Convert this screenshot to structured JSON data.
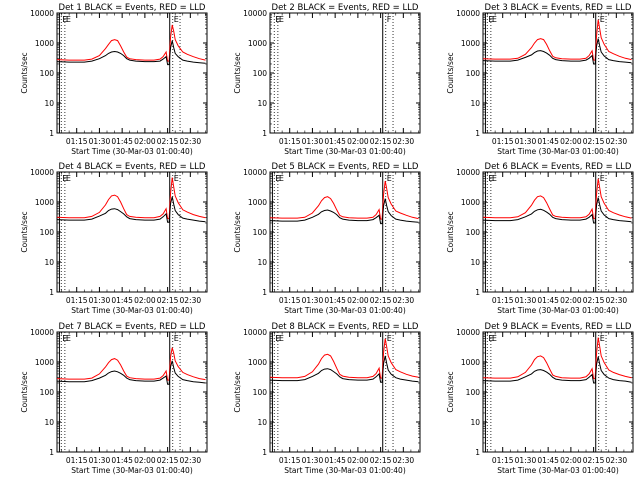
{
  "chart_data": {
    "type": "line",
    "layout": "3x3 grid of panels",
    "x_tick_labels": [
      "01:15",
      "01:30",
      "01:45",
      "02:00",
      "02:15",
      "02:30"
    ],
    "x_tick_minutes": [
      75,
      90,
      105,
      120,
      135,
      150
    ],
    "xlim_minutes": [
      62,
      161
    ],
    "xlabel": "Start Time (30-Mar-03 01:00:40)",
    "ylabel": "Counts/sec",
    "y_scale": "log",
    "ylim": [
      1,
      10000
    ],
    "y_tick_labels": [
      "1",
      "10",
      "100",
      "1000",
      "10000"
    ],
    "series_colors": {
      "events": "#000000",
      "lld": "#ff0000"
    },
    "panels": [
      {
        "title": "Det 1 BLACK = Events, RED = LLD",
        "flags": [
          "E",
          "E",
          "E"
        ],
        "markers_solid": [
          63.6,
          136.4
        ],
        "markers_dotted": [
          64.8,
          67.2,
          138.4,
          143.2
        ],
        "has_data": true,
        "x_minutes": [
          62,
          70,
          75,
          80,
          85,
          90,
          94,
          96,
          98,
          100,
          102,
          104,
          106,
          108,
          110,
          114,
          120,
          126,
          130,
          132,
          134,
          135,
          136,
          137,
          138,
          139,
          140,
          142,
          145,
          148,
          152,
          156,
          160
        ],
        "events": [
          240,
          230,
          230,
          230,
          250,
          300,
          380,
          450,
          500,
          520,
          500,
          450,
          380,
          300,
          270,
          250,
          240,
          240,
          250,
          290,
          350,
          190,
          190,
          700,
          1200,
          700,
          450,
          350,
          270,
          250,
          230,
          220,
          210
        ],
        "lld": [
          280,
          270,
          270,
          270,
          290,
          380,
          650,
          900,
          1200,
          1300,
          1200,
          800,
          500,
          340,
          300,
          280,
          270,
          270,
          290,
          350,
          500,
          250,
          250,
          1600,
          4000,
          2500,
          1300,
          800,
          500,
          420,
          350,
          300,
          270
        ]
      },
      {
        "title": "Det 2 BLACK = Events, RED = LLD",
        "flags": [
          "E",
          "E",
          "F"
        ],
        "markers_solid": [
          136.4
        ],
        "markers_dotted": [
          64.8,
          67.2,
          138.4,
          143.2
        ],
        "has_data": false,
        "x_minutes": [],
        "events": [],
        "lld": []
      },
      {
        "title": "Det 3 BLACK = Events, RED = LLD",
        "flags": [
          "E",
          "E",
          "E"
        ],
        "markers_solid": [
          63.6,
          136.4
        ],
        "markers_dotted": [
          64.8,
          67.2,
          138.4,
          143.2
        ],
        "has_data": true,
        "x_minutes": [
          62,
          70,
          75,
          80,
          85,
          90,
          94,
          96,
          98,
          100,
          102,
          104,
          106,
          108,
          110,
          114,
          120,
          126,
          130,
          132,
          134,
          135,
          136,
          137,
          138,
          139,
          140,
          142,
          145,
          148,
          152,
          156,
          160
        ],
        "events": [
          260,
          250,
          250,
          250,
          270,
          330,
          400,
          480,
          540,
          560,
          520,
          460,
          390,
          310,
          280,
          260,
          250,
          250,
          270,
          310,
          380,
          200,
          200,
          800,
          1400,
          800,
          500,
          370,
          280,
          260,
          240,
          230,
          220
        ],
        "lld": [
          300,
          290,
          290,
          290,
          310,
          420,
          700,
          1000,
          1300,
          1400,
          1300,
          900,
          550,
          360,
          320,
          300,
          290,
          290,
          310,
          380,
          550,
          270,
          270,
          1800,
          6000,
          3000,
          1500,
          900,
          520,
          440,
          360,
          310,
          280
        ]
      },
      {
        "title": "Det 4 BLACK = Events, RED = LLD",
        "flags": [
          "E",
          "E",
          "E"
        ],
        "markers_solid": [
          63.6,
          136.4
        ],
        "markers_dotted": [
          64.8,
          67.2,
          138.4,
          143.2
        ],
        "has_data": true,
        "x_minutes": [
          62,
          70,
          75,
          80,
          85,
          90,
          94,
          96,
          98,
          100,
          102,
          104,
          106,
          108,
          110,
          114,
          120,
          126,
          130,
          132,
          134,
          135,
          136,
          137,
          138,
          139,
          140,
          142,
          145,
          148,
          152,
          156,
          160
        ],
        "events": [
          260,
          250,
          250,
          250,
          270,
          340,
          420,
          520,
          580,
          600,
          560,
          480,
          400,
          320,
          280,
          260,
          250,
          250,
          270,
          320,
          400,
          210,
          210,
          900,
          1500,
          850,
          520,
          380,
          290,
          270,
          250,
          230,
          220
        ],
        "lld": [
          310,
          300,
          300,
          300,
          330,
          450,
          800,
          1200,
          1600,
          1700,
          1500,
          1000,
          600,
          380,
          330,
          310,
          300,
          300,
          330,
          400,
          600,
          280,
          280,
          2000,
          6500,
          3200,
          1600,
          950,
          550,
          460,
          380,
          330,
          300
        ]
      },
      {
        "title": "Det 5 BLACK = Events, RED = LLD",
        "flags": [
          "E",
          "E",
          "E"
        ],
        "markers_solid": [
          63.6,
          136.4
        ],
        "markers_dotted": [
          64.8,
          67.2,
          138.4,
          143.2
        ],
        "has_data": true,
        "x_minutes": [
          62,
          70,
          75,
          80,
          85,
          90,
          94,
          96,
          98,
          100,
          102,
          104,
          106,
          108,
          110,
          114,
          120,
          126,
          130,
          132,
          134,
          135,
          136,
          137,
          138,
          139,
          140,
          142,
          145,
          148,
          152,
          156,
          160
        ],
        "events": [
          240,
          230,
          230,
          230,
          250,
          310,
          390,
          470,
          520,
          540,
          500,
          450,
          380,
          300,
          270,
          250,
          240,
          240,
          260,
          300,
          360,
          190,
          190,
          750,
          1300,
          750,
          480,
          350,
          270,
          250,
          230,
          220,
          210
        ],
        "lld": [
          300,
          290,
          290,
          290,
          310,
          430,
          750,
          1100,
          1400,
          1500,
          1300,
          900,
          550,
          360,
          320,
          300,
          290,
          290,
          310,
          380,
          560,
          270,
          270,
          1800,
          5000,
          2800,
          1400,
          850,
          500,
          430,
          360,
          310,
          280
        ]
      },
      {
        "title": "Det 6 BLACK = Events, RED = LLD",
        "flags": [
          "E",
          "E",
          "E"
        ],
        "markers_solid": [
          63.6,
          136.4
        ],
        "markers_dotted": [
          64.8,
          67.2,
          138.4,
          143.2
        ],
        "has_data": true,
        "x_minutes": [
          62,
          70,
          75,
          80,
          85,
          90,
          94,
          96,
          98,
          100,
          102,
          104,
          106,
          108,
          110,
          114,
          120,
          126,
          130,
          132,
          134,
          135,
          136,
          137,
          138,
          139,
          140,
          142,
          145,
          148,
          152,
          156,
          160
        ],
        "events": [
          250,
          240,
          240,
          240,
          260,
          320,
          400,
          490,
          550,
          570,
          530,
          460,
          390,
          310,
          280,
          260,
          250,
          250,
          270,
          310,
          380,
          200,
          200,
          800,
          1400,
          800,
          500,
          370,
          280,
          260,
          240,
          230,
          220
        ],
        "lld": [
          310,
          300,
          300,
          300,
          320,
          440,
          780,
          1150,
          1500,
          1600,
          1400,
          950,
          580,
          370,
          330,
          310,
          300,
          300,
          320,
          390,
          580,
          280,
          280,
          1900,
          6000,
          3000,
          1500,
          900,
          520,
          440,
          370,
          320,
          290
        ]
      },
      {
        "title": "Det 7 BLACK = Events, RED = LLD",
        "flags": [
          "E",
          "E",
          "E"
        ],
        "markers_solid": [
          63.6,
          136.4
        ],
        "markers_dotted": [
          64.8,
          67.2,
          138.4,
          143.2
        ],
        "has_data": true,
        "x_minutes": [
          62,
          70,
          75,
          80,
          85,
          90,
          94,
          96,
          98,
          100,
          102,
          104,
          106,
          108,
          110,
          114,
          120,
          126,
          130,
          132,
          134,
          135,
          136,
          137,
          138,
          139,
          140,
          142,
          145,
          148,
          152,
          156,
          160
        ],
        "events": [
          230,
          220,
          220,
          220,
          240,
          290,
          360,
          430,
          480,
          500,
          470,
          420,
          360,
          290,
          260,
          240,
          230,
          230,
          250,
          290,
          340,
          180,
          180,
          700,
          1100,
          650,
          430,
          330,
          260,
          240,
          220,
          210,
          200
        ],
        "lld": [
          280,
          270,
          270,
          270,
          290,
          400,
          680,
          950,
          1200,
          1300,
          1150,
          800,
          500,
          340,
          300,
          280,
          270,
          270,
          290,
          350,
          500,
          250,
          250,
          1500,
          3000,
          2000,
          1100,
          700,
          450,
          380,
          320,
          280,
          260
        ]
      },
      {
        "title": "Det 8 BLACK = Events, RED = LLD",
        "flags": [
          "E",
          "E",
          "E"
        ],
        "markers_solid": [
          63.6,
          136.4
        ],
        "markers_dotted": [
          64.8,
          67.2,
          138.4,
          143.2
        ],
        "has_data": true,
        "x_minutes": [
          62,
          70,
          75,
          80,
          85,
          90,
          94,
          96,
          98,
          100,
          102,
          104,
          106,
          108,
          110,
          114,
          120,
          126,
          130,
          132,
          134,
          135,
          136,
          137,
          138,
          139,
          140,
          142,
          145,
          148,
          152,
          156,
          160
        ],
        "events": [
          250,
          240,
          240,
          240,
          260,
          330,
          420,
          520,
          580,
          600,
          560,
          480,
          400,
          320,
          280,
          260,
          250,
          250,
          270,
          320,
          400,
          210,
          210,
          900,
          1600,
          900,
          540,
          390,
          300,
          270,
          250,
          230,
          220
        ],
        "lld": [
          310,
          300,
          300,
          300,
          330,
          470,
          850,
          1300,
          1700,
          1800,
          1600,
          1050,
          620,
          390,
          340,
          310,
          300,
          300,
          330,
          410,
          620,
          290,
          290,
          2100,
          6000,
          3200,
          1600,
          950,
          560,
          470,
          390,
          340,
          310
        ]
      },
      {
        "title": "Det 9 BLACK = Events, RED = LLD",
        "flags": [
          "E",
          "E",
          "E"
        ],
        "markers_solid": [
          63.6,
          136.4
        ],
        "markers_dotted": [
          64.8,
          67.2,
          138.4,
          143.2
        ],
        "has_data": true,
        "x_minutes": [
          62,
          70,
          75,
          80,
          85,
          90,
          94,
          96,
          98,
          100,
          102,
          104,
          106,
          108,
          110,
          114,
          120,
          126,
          130,
          132,
          134,
          135,
          136,
          137,
          138,
          139,
          140,
          142,
          145,
          148,
          152,
          156,
          160
        ],
        "events": [
          240,
          230,
          230,
          230,
          250,
          320,
          400,
          490,
          540,
          560,
          520,
          460,
          390,
          310,
          270,
          250,
          240,
          240,
          260,
          310,
          380,
          200,
          200,
          850,
          1500,
          850,
          520,
          380,
          290,
          260,
          240,
          230,
          210
        ],
        "lld": [
          300,
          290,
          290,
          290,
          320,
          450,
          800,
          1200,
          1500,
          1600,
          1400,
          950,
          580,
          370,
          330,
          300,
          290,
          290,
          320,
          400,
          600,
          280,
          280,
          2000,
          6500,
          3300,
          1600,
          950,
          540,
          450,
          380,
          330,
          300
        ]
      }
    ]
  }
}
